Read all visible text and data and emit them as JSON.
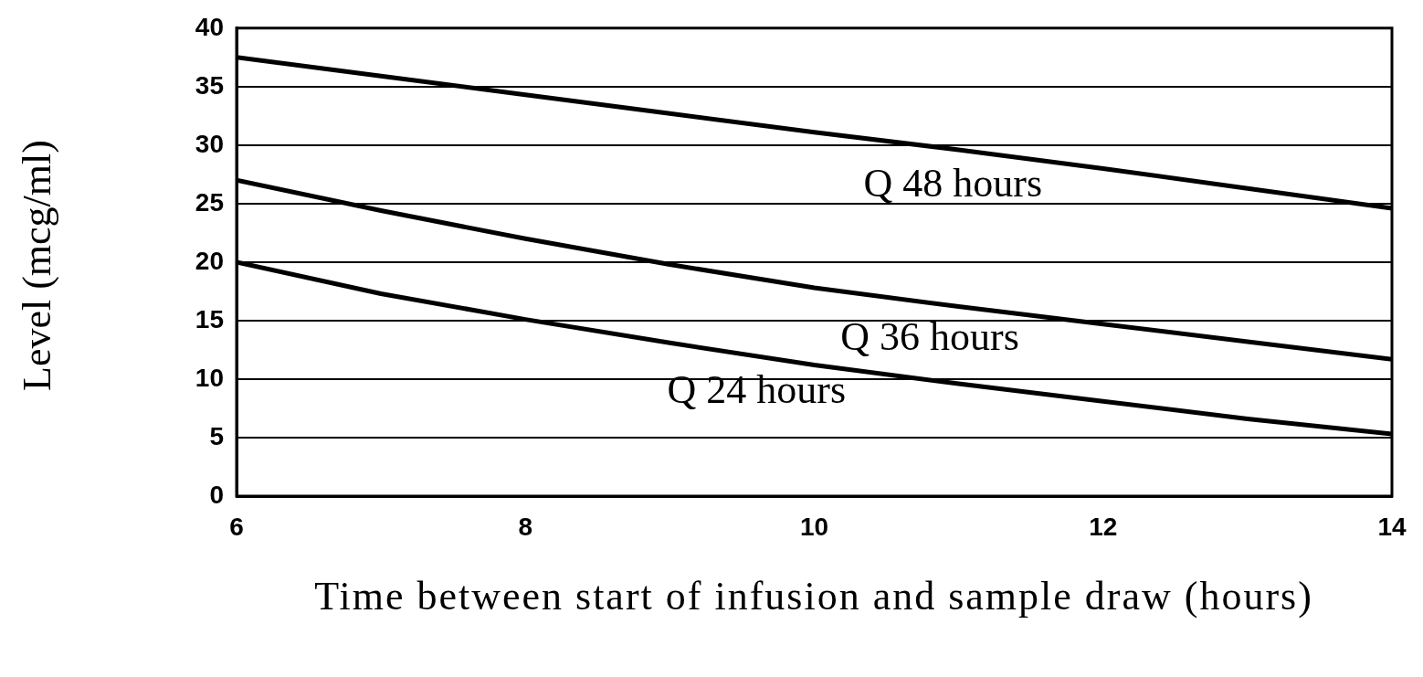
{
  "chart_data": {
    "type": "line",
    "xlabel": "Time between start of infusion and sample draw (hours)",
    "ylabel": "Level (mcg/ml)",
    "x": [
      6,
      7,
      8,
      9,
      10,
      11,
      12,
      13,
      14
    ],
    "series": [
      {
        "name": "Q 48 hours",
        "color": "#000000",
        "values": [
          37.5,
          35.9,
          34.3,
          32.7,
          31.1,
          29.6,
          28.0,
          26.3,
          24.6
        ]
      },
      {
        "name": "Q 36 hours",
        "color": "#000000",
        "values": [
          27.0,
          24.4,
          22.0,
          19.8,
          17.8,
          16.2,
          14.7,
          13.2,
          11.7
        ]
      },
      {
        "name": "Q 24 hours",
        "color": "#000000",
        "values": [
          20.0,
          17.3,
          15.1,
          13.1,
          11.2,
          9.6,
          8.1,
          6.6,
          5.3
        ]
      }
    ],
    "xlim": [
      6,
      14
    ],
    "xticks": [
      6,
      8,
      10,
      12,
      14
    ],
    "ylim": [
      0,
      40
    ],
    "yticks": [
      0,
      5,
      10,
      15,
      20,
      25,
      30,
      35,
      40
    ],
    "grid": "y",
    "legend": false,
    "marker": "none",
    "line_style": "solid"
  }
}
